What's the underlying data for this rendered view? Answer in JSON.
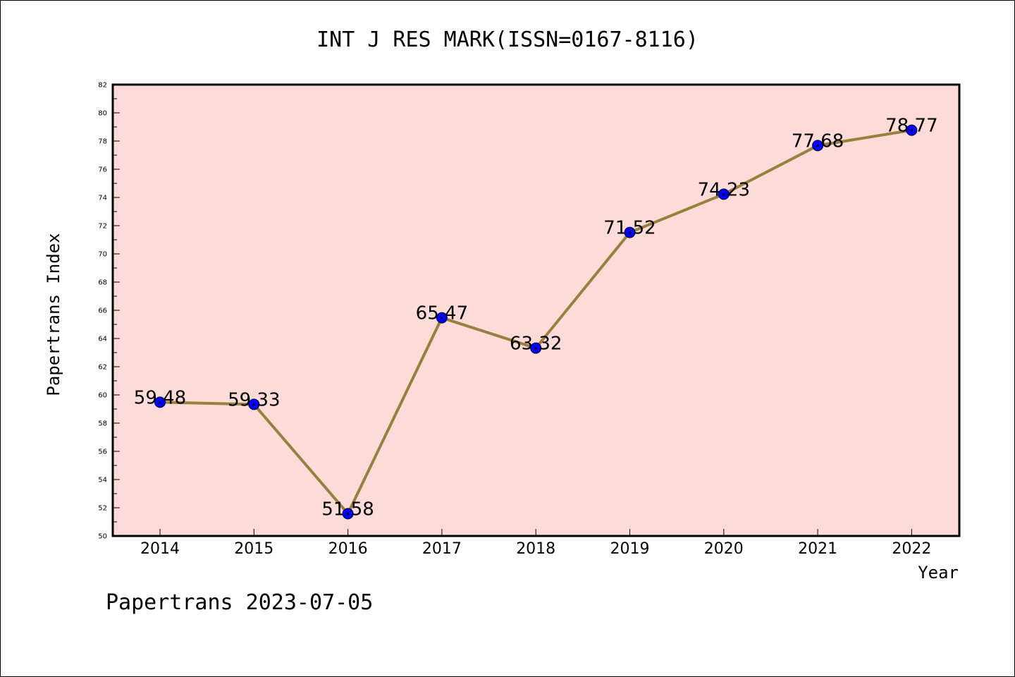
{
  "chart_data": {
    "type": "line",
    "title": "INT J RES MARK(ISSN=0167-8116)",
    "xlabel": "Year",
    "ylabel": "Papertrans Index",
    "categories": [
      "2014",
      "2015",
      "2016",
      "2017",
      "2018",
      "2019",
      "2020",
      "2021",
      "2022"
    ],
    "values": [
      59.48,
      59.33,
      51.58,
      65.47,
      63.32,
      71.52,
      74.23,
      77.68,
      78.77
    ],
    "data_labels": [
      "59.48",
      "59.33",
      "51.58",
      "65.47",
      "63.32",
      "71.52",
      "74.23",
      "77.68",
      "78.77"
    ],
    "ylim": [
      50,
      82
    ],
    "yticks": [
      "50",
      "52",
      "54",
      "56",
      "58",
      "60",
      "62",
      "64",
      "66",
      "68",
      "70",
      "72",
      "74",
      "76",
      "78",
      "80",
      "82"
    ],
    "grid": false,
    "legend": "none"
  },
  "footer": "Papertrans 2023-07-05",
  "colors": {
    "plot_background": "#fddbd8",
    "line": "#9b7f3c",
    "marker": "#0000ff",
    "axis": "#000000"
  }
}
